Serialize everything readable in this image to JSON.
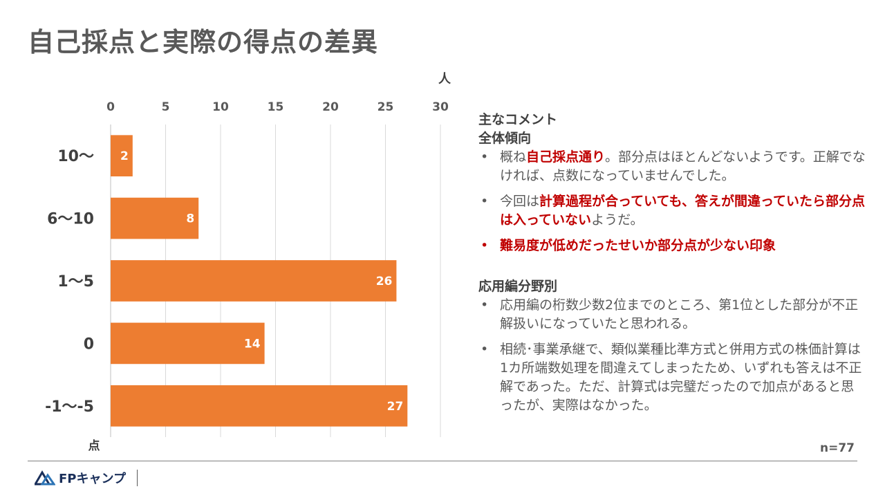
{
  "title": "自己採点と実際の得点の差異",
  "chart_data": {
    "type": "bar",
    "orientation": "horizontal",
    "categories": [
      "10～",
      "6～10",
      "1～5",
      "0",
      "-1～-5"
    ],
    "values": [
      2,
      8,
      26,
      14,
      27
    ],
    "xlim": [
      0,
      30
    ],
    "xticks": [
      0,
      5,
      10,
      15,
      20,
      25,
      30
    ],
    "xlabel": "人",
    "ylabel": "点",
    "bar_color": "#ed7d31",
    "grid": true
  },
  "comments": {
    "heading": "主なコメント",
    "sections": [
      {
        "title": "全体傾向",
        "items": [
          {
            "red": false,
            "parts": [
              {
                "text": "概ね",
                "hl": false
              },
              {
                "text": "自己採点通り",
                "hl": true
              },
              {
                "text": "。部分点はほとんどないようです。正解でなければ、点数になっていませんでした。",
                "hl": false
              }
            ]
          },
          {
            "red": false,
            "parts": [
              {
                "text": "今回は",
                "hl": false
              },
              {
                "text": "計算過程が合っていても、答えが間違っていたら部分点は入っていない",
                "hl": true
              },
              {
                "text": "ようだ。",
                "hl": false
              }
            ]
          },
          {
            "red": true,
            "parts": [
              {
                "text": "難易度が低めだったせいか部分点が少ない印象",
                "hl": true
              }
            ]
          }
        ]
      },
      {
        "title": "応用編分野別",
        "items": [
          {
            "red": false,
            "parts": [
              {
                "text": "応用編の桁数少数2位までのところ、第1位とした部分が不正解扱いになっていたと思われる。",
                "hl": false
              }
            ]
          },
          {
            "red": false,
            "parts": [
              {
                "text": "相続･事業承継で、類似業種比準方式と併用方式の株価計算は1カ所端数処理を間違えてしまったため、いずれも答えは不正解であった。ただ、計算式は完璧だったので加点があると思ったが、実際はなかった。",
                "hl": false
              }
            ]
          }
        ]
      }
    ]
  },
  "n_label": "n=77",
  "logo": {
    "text": "FPキャンプ",
    "color": "#1a2f5a",
    "accent": "#2e75b6"
  }
}
